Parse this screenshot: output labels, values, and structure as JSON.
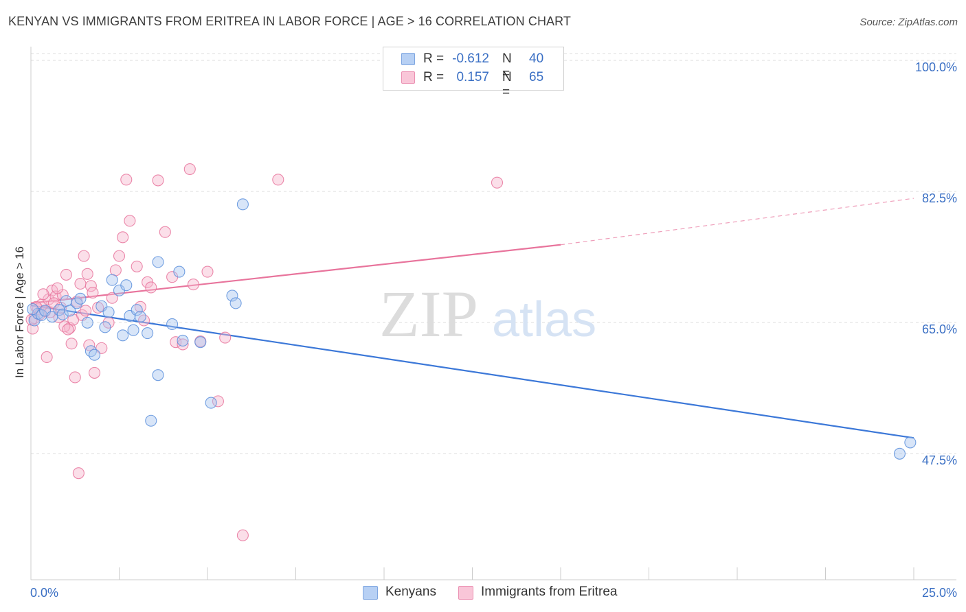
{
  "title": "KENYAN VS IMMIGRANTS FROM ERITREA IN LABOR FORCE | AGE > 16 CORRELATION CHART",
  "source": "Source: ZipAtlas.com",
  "watermark": {
    "zip": "ZIP",
    "atlas": "atlas"
  },
  "legend": {
    "r_label": "R =",
    "n_label": "N =",
    "kenyans": {
      "r": "-0.612",
      "n": "40"
    },
    "eritrea": {
      "r": "0.157",
      "n": "65"
    }
  },
  "chart_data": {
    "type": "scatter",
    "ylabel": "In Labor Force | Age > 16",
    "x_tick_labels": [
      "0.0%",
      "25.0%"
    ],
    "y_tick_labels": [
      "100.0%",
      "82.5%",
      "65.0%",
      "47.5%"
    ],
    "y_ticks": [
      100.0,
      82.5,
      65.0,
      47.5
    ],
    "xlim": [
      0,
      25
    ],
    "ylim": [
      30,
      102
    ],
    "grid": true,
    "legend_position": "top-center",
    "colors": {
      "kenyans": "#3c78d8",
      "eritrea": "#e8749c",
      "kenyans_fill": "#a9c6f0",
      "eritrea_fill": "#f7b9cf"
    },
    "series": [
      {
        "name": "Kenyans",
        "color": "#3c78d8",
        "points": [
          [
            0.1,
            66.1
          ],
          [
            0.2,
            67.0
          ],
          [
            0.3,
            66.8
          ],
          [
            0.4,
            67.4
          ],
          [
            0.6,
            66.6
          ],
          [
            0.8,
            67.5
          ],
          [
            0.9,
            66.9
          ],
          [
            1.0,
            68.7
          ],
          [
            1.1,
            67.4
          ],
          [
            1.3,
            68.4
          ],
          [
            1.4,
            69.0
          ],
          [
            1.6,
            65.8
          ],
          [
            1.7,
            62.0
          ],
          [
            1.8,
            61.5
          ],
          [
            2.0,
            68.0
          ],
          [
            2.1,
            65.2
          ],
          [
            2.2,
            67.2
          ],
          [
            2.3,
            71.5
          ],
          [
            2.5,
            70.1
          ],
          [
            2.6,
            64.1
          ],
          [
            2.7,
            70.8
          ],
          [
            2.8,
            66.7
          ],
          [
            2.9,
            64.8
          ],
          [
            3.0,
            67.5
          ],
          [
            3.1,
            66.6
          ],
          [
            3.3,
            64.4
          ],
          [
            3.4,
            52.7
          ],
          [
            3.6,
            58.8
          ],
          [
            3.6,
            73.9
          ],
          [
            4.0,
            65.6
          ],
          [
            4.2,
            72.6
          ],
          [
            4.3,
            63.4
          ],
          [
            4.8,
            63.2
          ],
          [
            5.1,
            55.1
          ],
          [
            5.7,
            69.4
          ],
          [
            5.8,
            68.4
          ],
          [
            6.0,
            81.6
          ],
          [
            24.6,
            48.3
          ],
          [
            24.9,
            49.8
          ],
          [
            0.05,
            67.6
          ]
        ],
        "trend": {
          "x": [
            0.0,
            25.0
          ],
          "y": [
            68.1,
            50.4
          ]
        }
      },
      {
        "name": "Immigrants from Eritrea",
        "color": "#e8749c",
        "points": [
          [
            0.05,
            65.0
          ],
          [
            0.1,
            66.4
          ],
          [
            0.2,
            67.6
          ],
          [
            0.3,
            68.2
          ],
          [
            0.4,
            67.3
          ],
          [
            0.5,
            68.9
          ],
          [
            0.6,
            70.1
          ],
          [
            0.7,
            69.3
          ],
          [
            0.8,
            66.5
          ],
          [
            0.9,
            69.5
          ],
          [
            1.0,
            72.2
          ],
          [
            1.1,
            65.1
          ],
          [
            1.2,
            66.2
          ],
          [
            1.3,
            68.6
          ],
          [
            1.4,
            71.0
          ],
          [
            1.5,
            74.7
          ],
          [
            1.6,
            72.3
          ],
          [
            1.7,
            70.7
          ],
          [
            1.8,
            59.1
          ],
          [
            1.9,
            67.8
          ],
          [
            2.0,
            62.4
          ],
          [
            2.2,
            65.8
          ],
          [
            2.3,
            69.1
          ],
          [
            2.4,
            72.8
          ],
          [
            2.5,
            74.7
          ],
          [
            2.6,
            77.2
          ],
          [
            2.7,
            84.9
          ],
          [
            2.8,
            79.4
          ],
          [
            3.0,
            73.3
          ],
          [
            3.1,
            67.9
          ],
          [
            3.2,
            66.1
          ],
          [
            3.3,
            71.2
          ],
          [
            3.4,
            70.5
          ],
          [
            3.6,
            84.8
          ],
          [
            3.8,
            77.9
          ],
          [
            4.0,
            71.9
          ],
          [
            4.1,
            63.2
          ],
          [
            4.3,
            62.9
          ],
          [
            4.5,
            86.3
          ],
          [
            4.6,
            70.9
          ],
          [
            4.8,
            63.3
          ],
          [
            5.0,
            72.6
          ],
          [
            5.3,
            55.3
          ],
          [
            5.5,
            63.8
          ],
          [
            6.0,
            37.4
          ],
          [
            7.0,
            84.9
          ],
          [
            13.2,
            84.5
          ],
          [
            0.15,
            67.9
          ],
          [
            0.25,
            66.9
          ],
          [
            0.35,
            69.6
          ],
          [
            0.45,
            61.2
          ],
          [
            0.55,
            67.2
          ],
          [
            0.65,
            68.4
          ],
          [
            0.75,
            70.4
          ],
          [
            0.85,
            67.8
          ],
          [
            0.95,
            65.3
          ],
          [
            1.05,
            64.9
          ],
          [
            1.15,
            63.0
          ],
          [
            1.25,
            58.5
          ],
          [
            1.35,
            45.7
          ],
          [
            1.45,
            66.8
          ],
          [
            1.55,
            67.4
          ],
          [
            1.65,
            62.8
          ],
          [
            1.75,
            69.8
          ],
          [
            0.02,
            66.2
          ]
        ],
        "trend": {
          "x": [
            0.0,
            15.0
          ],
          "y": [
            68.4,
            76.2
          ]
        },
        "trend_extension": {
          "x": [
            15.0,
            25.0
          ],
          "y": [
            76.2,
            82.4
          ]
        }
      }
    ]
  },
  "bottom_legend": {
    "kenyans": "Kenyans",
    "eritrea": "Immigrants from Eritrea"
  }
}
